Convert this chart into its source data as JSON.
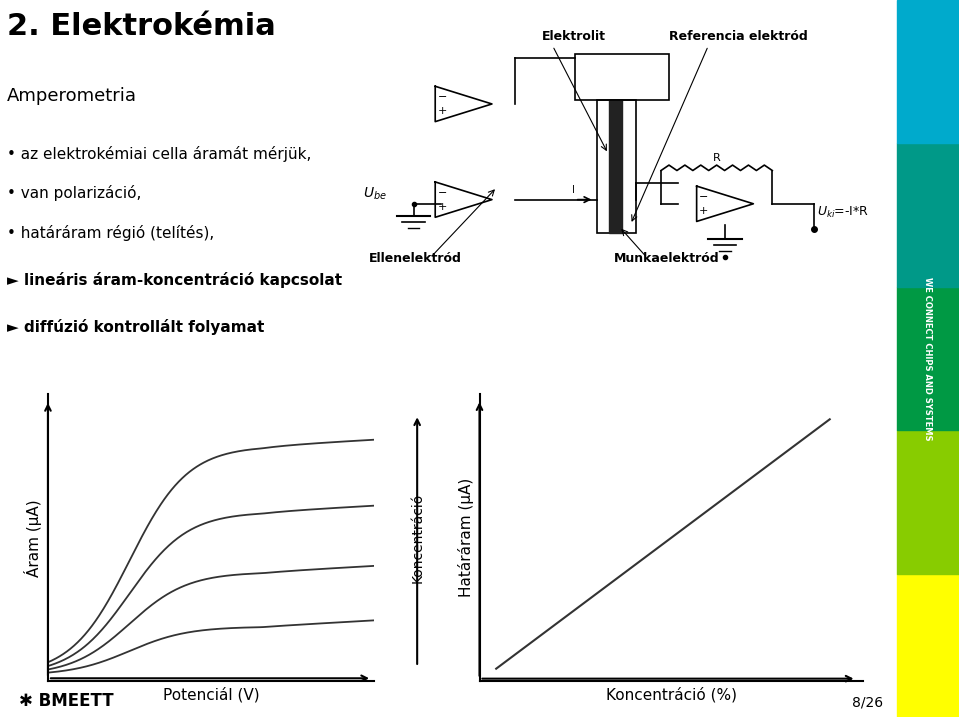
{
  "title": "2. Elektrokémia",
  "subtitle": "Amperometria",
  "bullets": [
    "• az elektrokémiai cella áramát mérjük,",
    "• van polarizáció,",
    "• határáram régió (telítés),",
    "► lineáris áram-koncentráció kapcsolat",
    "► diffúzió kontrollált folyamat"
  ],
  "graph1_xlabel": "Potenciál (V)",
  "graph1_ylabel": "Áram (μA)",
  "graph1_arrow_label": "Koncentráció",
  "graph2_xlabel": "Koncentráció (%)",
  "graph2_ylabel": "Határáram (μA)",
  "circuit_labels": [
    "Elektrolit",
    "Referencia elektród",
    "Ellenelektród",
    "Munkaelektród"
  ],
  "sidebar_colors": [
    "#ffff00",
    "#88cc00",
    "#009944",
    "#009988",
    "#00aacc"
  ],
  "bg_color": "#ffffff",
  "text_color": "#000000",
  "page_label": "8/26",
  "footer_text": "WE CONNECT CHIPS AND SYSTEMS",
  "bme_text": "BMEETT"
}
